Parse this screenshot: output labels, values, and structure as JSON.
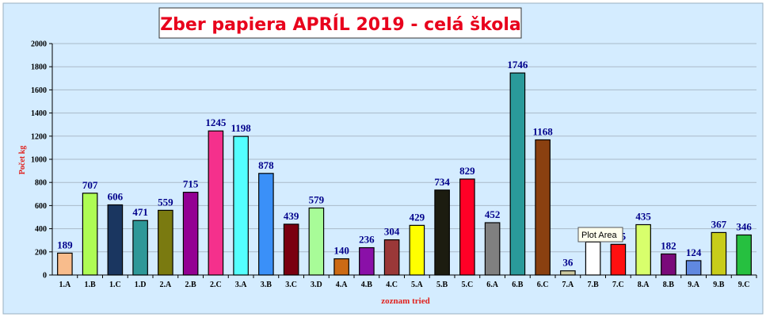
{
  "chart_data": {
    "type": "bar",
    "title": "Zber papiera APRÍL 2019 - celá škola",
    "xlabel": "zoznam tried",
    "ylabel": "Počet kg",
    "ylim": [
      0,
      2000
    ],
    "yticks": [
      "0",
      "200",
      "400",
      "600",
      "800",
      "1000",
      "1200",
      "1400",
      "1600",
      "1800",
      "2000"
    ],
    "grid": true,
    "legend": "none",
    "categories": [
      "1.A",
      "1.B",
      "1.C",
      "1.D",
      "2.A",
      "2.B",
      "2.C",
      "3.A",
      "3.B",
      "3.C",
      "3.D",
      "4.A",
      "4.B",
      "4.C",
      "5.A",
      "5.B",
      "5.C",
      "6.A",
      "6.B",
      "6.C",
      "7.A",
      "7.B",
      "7.C",
      "8.A",
      "8.B",
      "9.A",
      "9.B",
      "9.C"
    ],
    "values": [
      189,
      707,
      606,
      471,
      559,
      715,
      1245,
      1198,
      878,
      439,
      579,
      140,
      236,
      304,
      429,
      734,
      829,
      452,
      1746,
      1168,
      36,
      285,
      265,
      435,
      182,
      124,
      367,
      346
    ],
    "bar_colors": [
      "#f8bc8c",
      "#aefc54",
      "#1a3660",
      "#2e9898",
      "#7a7a10",
      "#930093",
      "#f5308c",
      "#54ffff",
      "#3a90f8",
      "#7a0010",
      "#a8fc98",
      "#cc6a14",
      "#8a10a8",
      "#9a3838",
      "#ffff00",
      "#1c1c10",
      "#ff0026",
      "#808080",
      "#2a9a9a",
      "#8a4010",
      "#cdc9a0",
      "#ffffff",
      "#ff1010",
      "#d8ff6c",
      "#7a0a7a",
      "#6088e0",
      "#c8cc1a",
      "#26c040"
    ],
    "colors": {
      "background": "#d4ecff",
      "label": "#00008b",
      "title": "#e8001c",
      "axis_title": "#e0201c",
      "grid": "#a9bac8"
    },
    "tooltip": "Plot Area"
  }
}
